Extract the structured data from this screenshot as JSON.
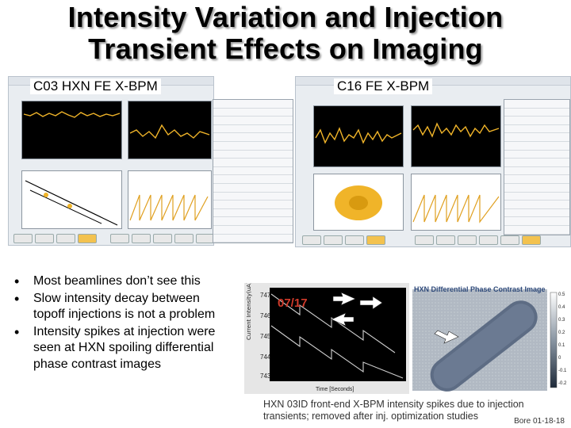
{
  "slide": {
    "title_line1": "Intensity Variation and Injection",
    "title_line2": "Transient Effects on Imaging",
    "caption_left": "C03 HXN FE X-BPM",
    "caption_right": "C16 FE X-BPM",
    "bullets": [
      "Most beamlines don’t see this",
      "Slow intensity decay between topoff injections is not a problem",
      "Intensity spikes at injection were seen at HXN spoiling differential phase contrast images"
    ],
    "hxn_figure": {
      "date_label": "07/17",
      "image_title": "HXN Differential Phase Contrast Image",
      "ylabel": "Current Intensity(uA)",
      "xlabel": "Time [Seconds]",
      "yticks": [
        "747",
        "746",
        "745",
        "744",
        "743"
      ],
      "colorbar_ticks": [
        "0.5",
        "0.4",
        "0.3",
        "0.2",
        "0.1",
        "0",
        "-0.1",
        "-0.2"
      ]
    },
    "footer_caption": "HXN 03ID front-end X-BPM intensity spikes due to injection transients; removed after inj. optimization studies",
    "page_number": "Bore 01-18-18"
  },
  "colors": {
    "signal": "#f0b429",
    "date_label": "#d13b2b",
    "arrow": "#ffffff"
  }
}
